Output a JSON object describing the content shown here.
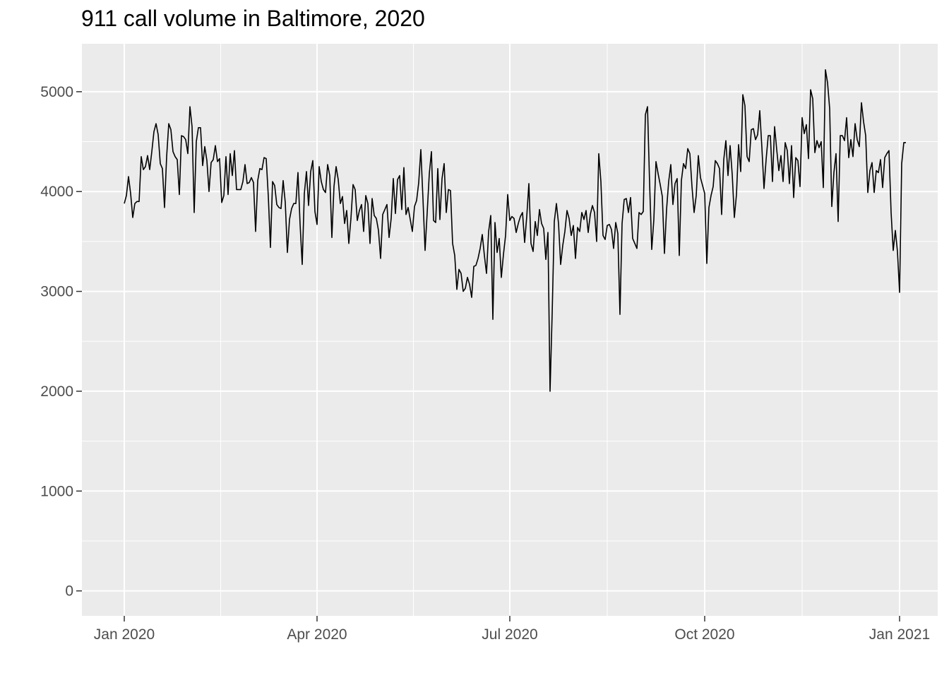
{
  "chart_data": {
    "type": "line",
    "title": "911 call volume in Baltimore, 2020",
    "xlabel": "",
    "ylabel": "",
    "x_ticks": [
      {
        "date": "2020-01-01",
        "label": "Jan 2020"
      },
      {
        "date": "2020-04-01",
        "label": "Apr 2020"
      },
      {
        "date": "2020-07-01",
        "label": "Jul 2020"
      },
      {
        "date": "2020-10-01",
        "label": "Oct 2020"
      },
      {
        "date": "2021-01-01",
        "label": "Jan 2021"
      }
    ],
    "y_ticks": [
      0,
      1000,
      2000,
      3000,
      4000,
      5000
    ],
    "xlim": [
      "2019-12-12",
      "2021-01-19"
    ],
    "ylim": [
      -250,
      5480
    ],
    "grid": true,
    "colors": {
      "panel": "#ebebeb",
      "grid": "#ffffff",
      "line": "#000000",
      "tick_text": "#4d4d4d"
    },
    "series": [
      {
        "x_start": "2020-01-01",
        "interval": "1 day",
        "values": [
          3880,
          3960,
          4150,
          3980,
          3740,
          3880,
          3900,
          3900,
          4350,
          4220,
          4250,
          4360,
          4220,
          4400,
          4600,
          4680,
          4570,
          4280,
          4230,
          3840,
          4350,
          4680,
          4620,
          4400,
          4350,
          4320,
          3970,
          4560,
          4550,
          4520,
          4380,
          4850,
          4650,
          3790,
          4500,
          4640,
          4640,
          4260,
          4450,
          4310,
          4000,
          4290,
          4320,
          4460,
          4300,
          4330,
          3890,
          3960,
          4350,
          3970,
          4380,
          4160,
          4410,
          4020,
          4020,
          4020,
          4100,
          4270,
          4080,
          4090,
          4140,
          4090,
          3600,
          4110,
          4230,
          4220,
          4340,
          4330,
          3950,
          3440,
          4100,
          4060,
          3870,
          3840,
          3830,
          4110,
          3890,
          3390,
          3720,
          3830,
          3880,
          3880,
          4190,
          3670,
          3270,
          3980,
          4200,
          3860,
          4200,
          4310,
          3800,
          3670,
          4250,
          4100,
          4020,
          3990,
          4270,
          4160,
          3540,
          4050,
          4250,
          4120,
          3880,
          3950,
          3680,
          3810,
          3480,
          3730,
          4070,
          4020,
          3710,
          3810,
          3870,
          3600,
          3960,
          3880,
          3480,
          3930,
          3760,
          3730,
          3610,
          3330,
          3770,
          3820,
          3870,
          3540,
          3730,
          4130,
          3780,
          4120,
          4160,
          3820,
          4240,
          3770,
          3840,
          3720,
          3600,
          3850,
          3910,
          4090,
          4420,
          3930,
          3410,
          3790,
          4180,
          4400,
          3710,
          3690,
          4230,
          3720,
          4130,
          4280,
          3790,
          4020,
          4010,
          3480,
          3360,
          3020,
          3220,
          3180,
          3000,
          3030,
          3140,
          3070,
          2940,
          3250,
          3260,
          3330,
          3430,
          3570,
          3360,
          3180,
          3600,
          3760,
          2720,
          3690,
          3390,
          3530,
          3140,
          3370,
          3560,
          3970,
          3710,
          3750,
          3730,
          3590,
          3680,
          3750,
          3790,
          3490,
          3750,
          4080,
          3480,
          3400,
          3700,
          3560,
          3820,
          3680,
          3630,
          3320,
          3590,
          2000,
          2780,
          3700,
          3880,
          3680,
          3270,
          3460,
          3600,
          3810,
          3730,
          3560,
          3660,
          3330,
          3640,
          3600,
          3790,
          3720,
          3810,
          3590,
          3770,
          3860,
          3790,
          3500,
          4380,
          4100,
          3560,
          3520,
          3660,
          3670,
          3620,
          3430,
          3690,
          3580,
          2770,
          3680,
          3920,
          3930,
          3790,
          3940,
          3530,
          3480,
          3430,
          3790,
          3770,
          3800,
          4770,
          4850,
          4080,
          3420,
          3720,
          4300,
          4180,
          4070,
          3950,
          3380,
          3820,
          4100,
          4270,
          3870,
          4080,
          4130,
          3360,
          4110,
          4280,
          4230,
          4430,
          4380,
          4050,
          3790,
          3960,
          4360,
          4140,
          4060,
          3980,
          3280,
          3840,
          3960,
          4050,
          4310,
          4280,
          4230,
          3770,
          4320,
          4510,
          4160,
          4460,
          4170,
          3740,
          3970,
          4470,
          4200,
          4970,
          4860,
          4350,
          4300,
          4620,
          4630,
          4520,
          4570,
          4810,
          4440,
          4030,
          4320,
          4560,
          4560,
          4100,
          4650,
          4420,
          4210,
          4360,
          4100,
          4490,
          4410,
          4080,
          4460,
          3940,
          4340,
          4310,
          4050,
          4740,
          4580,
          4670,
          4330,
          5020,
          4930,
          4390,
          4510,
          4440,
          4500,
          4040,
          5220,
          5090,
          4830,
          3850,
          4190,
          4380,
          3700,
          4560,
          4560,
          4510,
          4740,
          4340,
          4520,
          4350,
          4680,
          4520,
          4450,
          4890,
          4700,
          4560,
          3990,
          4210,
          4290,
          3990,
          4210,
          4190,
          4320,
          4040,
          4340,
          4380,
          4410,
          3790,
          3410,
          3610,
          3400,
          2990,
          4280,
          4490,
          4490
        ]
      }
    ]
  }
}
